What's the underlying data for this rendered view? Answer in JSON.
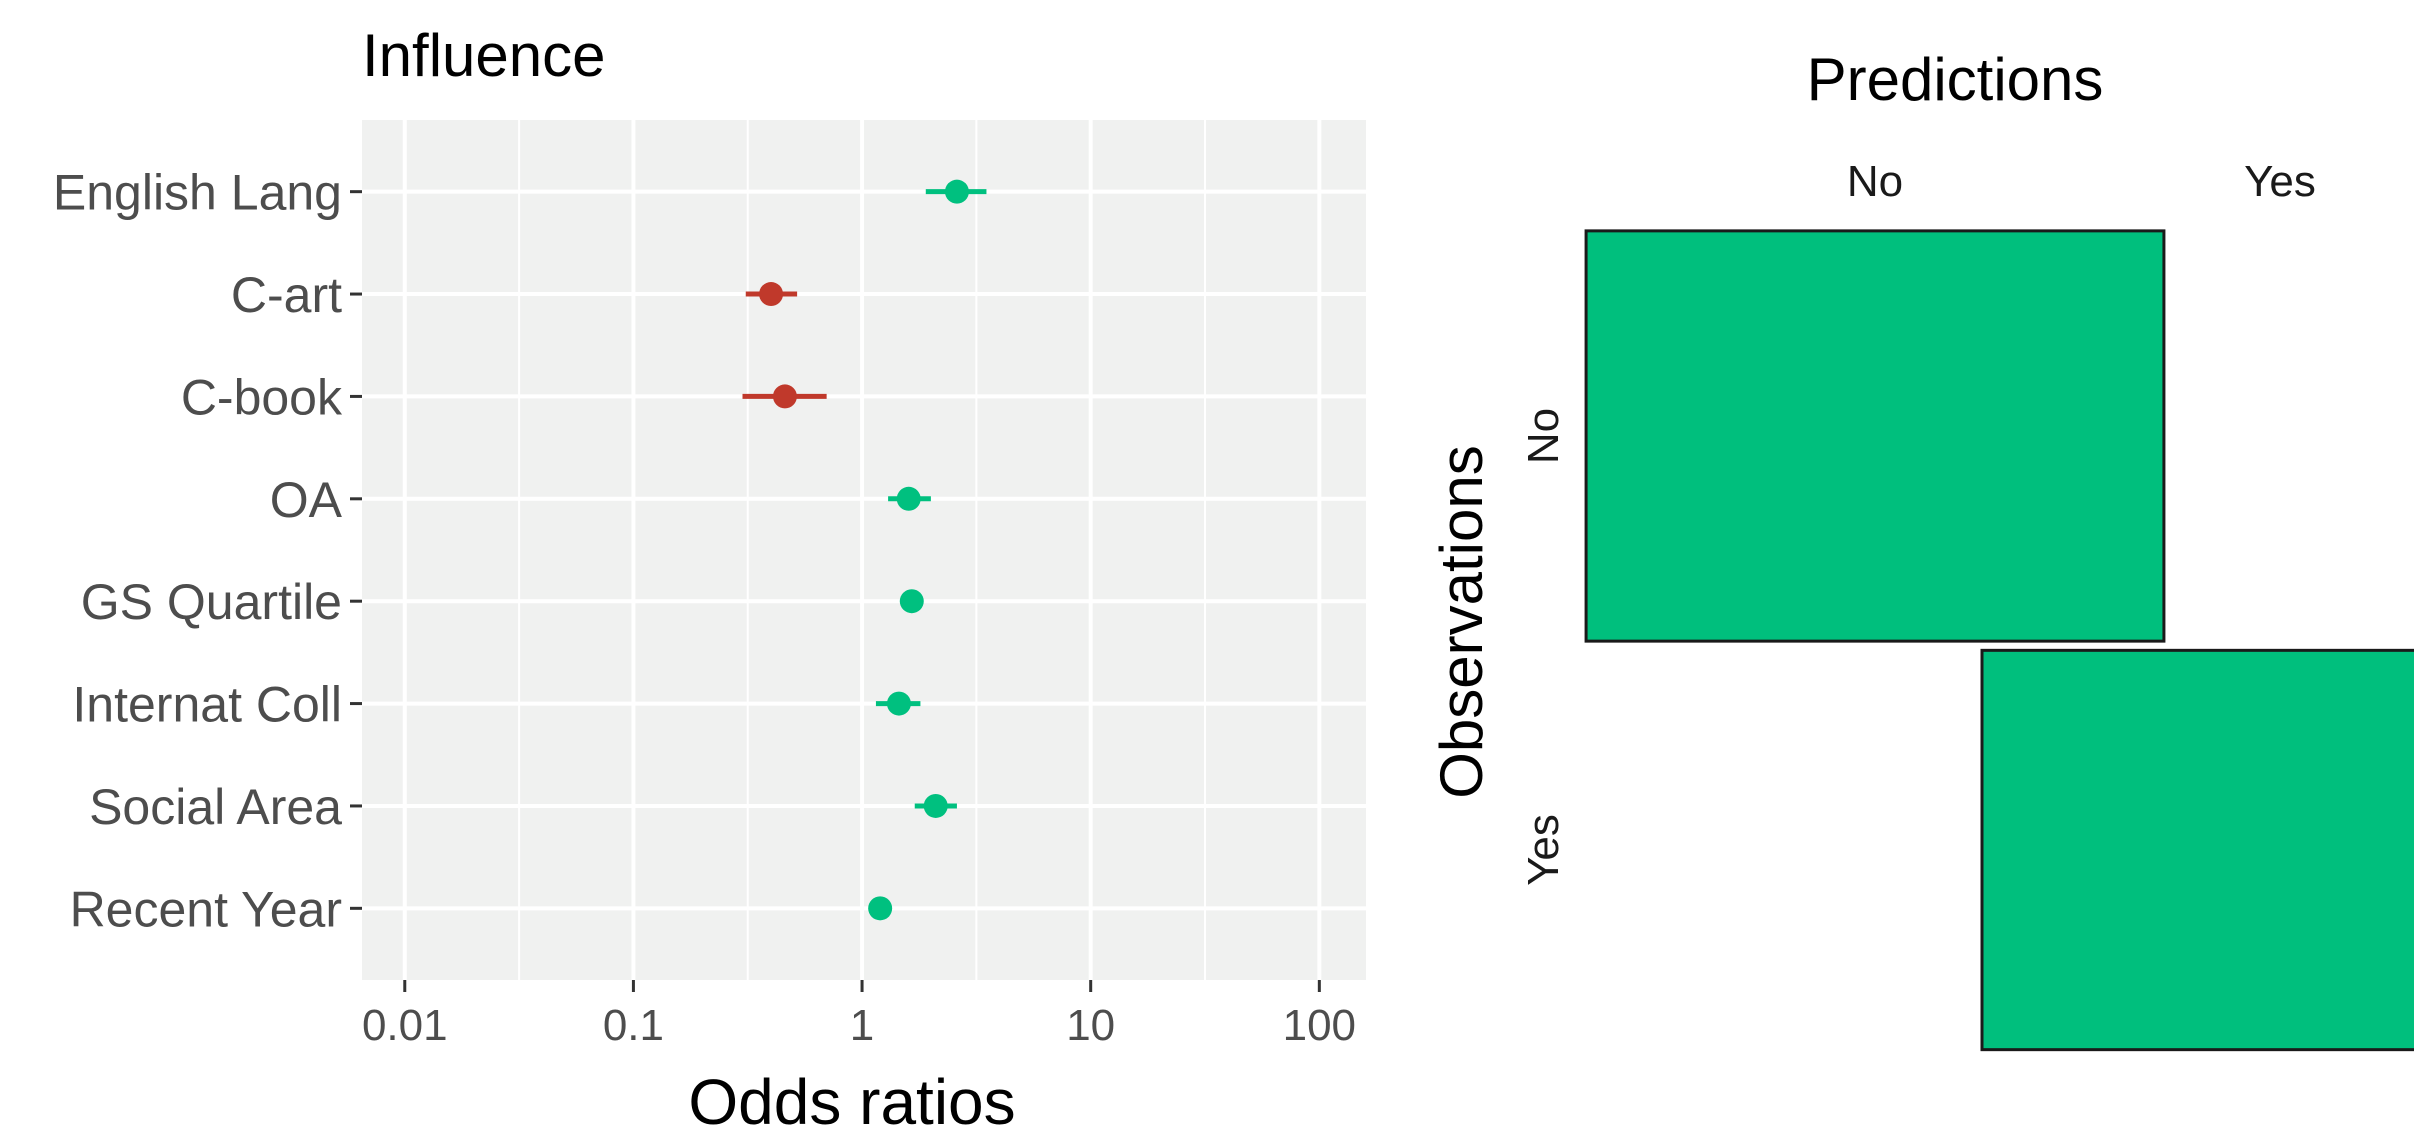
{
  "chart_data": [
    {
      "type": "forest",
      "title": "Influence",
      "xlabel": "Odds ratios",
      "ylabel": "",
      "x_scale": "log10",
      "xlim": [
        0.0065,
        160
      ],
      "x_ticks": [
        0.01,
        0.1,
        1,
        10,
        100
      ],
      "x_tick_labels": [
        "0.01",
        "0.1",
        "1",
        "10",
        "100"
      ],
      "grid": true,
      "categories": [
        "English Lang",
        "C-art",
        "C-book",
        "OA",
        "GS Quartile",
        "Internat Coll",
        "Social Area",
        "Recent Year"
      ],
      "points": [
        {
          "label": "English Lang",
          "or": 2.6,
          "low": 1.9,
          "high": 3.5,
          "color": "#00c07f"
        },
        {
          "label": "C-art",
          "or": 0.4,
          "low": 0.31,
          "high": 0.52,
          "color": "#c0392b"
        },
        {
          "label": "C-book",
          "or": 0.46,
          "low": 0.3,
          "high": 0.7,
          "color": "#c0392b"
        },
        {
          "label": "OA",
          "or": 1.6,
          "low": 1.3,
          "high": 2.0,
          "color": "#00c07f"
        },
        {
          "label": "GS Quartile",
          "or": 1.65,
          "low": 1.55,
          "high": 1.75,
          "color": "#00c07f"
        },
        {
          "label": "Internat Coll",
          "or": 1.45,
          "low": 1.15,
          "high": 1.8,
          "color": "#00c07f"
        },
        {
          "label": "Social Area",
          "or": 2.1,
          "low": 1.7,
          "high": 2.6,
          "color": "#00c07f"
        },
        {
          "label": "Recent Year",
          "or": 1.2,
          "low": 1.12,
          "high": 1.3,
          "color": "#00c07f"
        }
      ],
      "colors": {
        "positive": "#00c07f",
        "negative": "#c0392b",
        "panel": "#f0f1f0",
        "grid": "#ffffff"
      }
    },
    {
      "type": "heatmap",
      "title": "Predictions",
      "xlabel": "",
      "ylabel": "Observations",
      "x_categories": [
        "No",
        "Yes"
      ],
      "y_categories": [
        "No",
        "Yes"
      ],
      "cells": [
        {
          "row": "No",
          "col": "No",
          "share_of_max": 0.94
        },
        {
          "row": "Yes",
          "col": "Yes",
          "share_of_max": 1.0
        }
      ],
      "colors": {
        "fill": "#00bf7d",
        "stroke": "#1a1a1a"
      }
    }
  ]
}
